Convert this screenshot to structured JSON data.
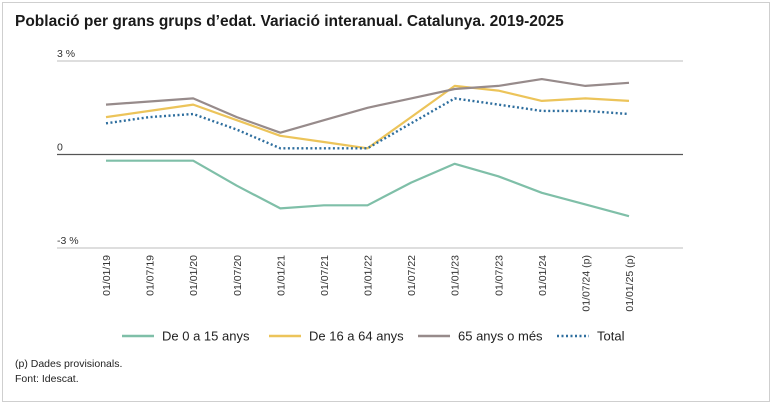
{
  "chart_data": {
    "type": "line",
    "title": "Població per grans grups d’edat. Variació interanual. Catalunya. 2019-2025",
    "categories": [
      "01/01/19",
      "01/07/19",
      "01/01/20",
      "01/07/20",
      "01/01/21",
      "01/07/21",
      "01/01/22",
      "01/07/22",
      "01/01/23",
      "01/07/23",
      "01/01/24",
      "01/07/24 (p)",
      "01/01/25 (p)"
    ],
    "ylim": [
      -3,
      3
    ],
    "yticks": [
      {
        "value": 3,
        "label": "3 %"
      },
      {
        "value": 0,
        "label": "0"
      },
      {
        "value": -3,
        "label": "-3 %"
      }
    ],
    "series": [
      {
        "name": "De 0 a 15 anys",
        "color": "#7fbfa8",
        "dash": "",
        "values": [
          -0.2,
          -0.2,
          -0.2,
          -1.0,
          -1.73,
          -1.63,
          -1.63,
          -0.9,
          -0.3,
          -0.7,
          -1.23,
          -1.6,
          -1.98
        ]
      },
      {
        "name": "De 16 a 64 anys",
        "color": "#ecc45a",
        "dash": "",
        "values": [
          1.2,
          1.4,
          1.6,
          1.1,
          0.6,
          0.4,
          0.2,
          1.2,
          2.2,
          2.05,
          1.72,
          1.8,
          1.72
        ]
      },
      {
        "name": "65 anys o més",
        "color": "#978b8b",
        "dash": "",
        "values": [
          1.6,
          1.7,
          1.8,
          1.2,
          0.7,
          1.1,
          1.5,
          1.8,
          2.1,
          2.2,
          2.42,
          2.2,
          2.3
        ]
      },
      {
        "name": "Total",
        "color": "#2e6e9e",
        "dash": "2,2.5",
        "values": [
          1.0,
          1.2,
          1.3,
          0.8,
          0.2,
          0.2,
          0.2,
          1.0,
          1.8,
          1.6,
          1.4,
          1.4,
          1.3
        ]
      }
    ]
  },
  "notes": {
    "provisional": "(p) Dades provisionals.",
    "source": "Font: Idescat."
  }
}
